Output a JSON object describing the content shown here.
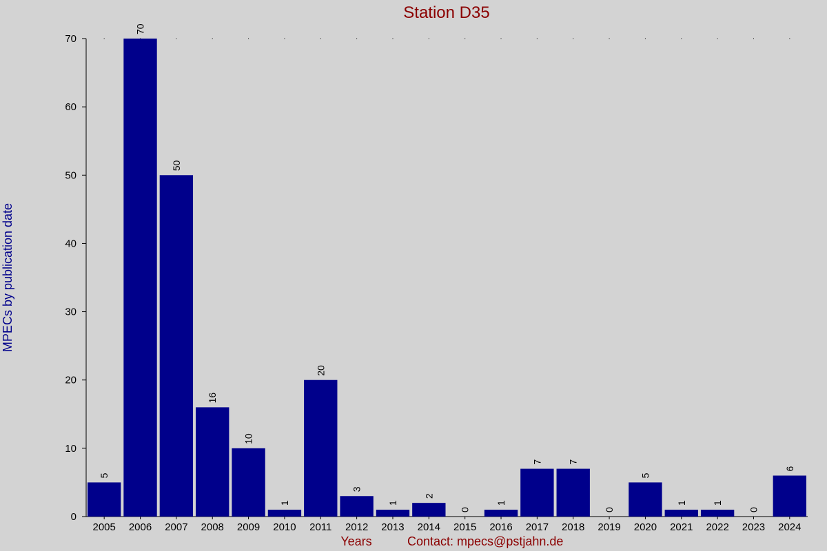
{
  "chart_data": {
    "type": "bar",
    "title": "Station D35",
    "xlabel": "Years",
    "ylabel": "MPECs by publication date",
    "footer": "Contact: mpecs@pstjahn.de",
    "categories": [
      "2005",
      "2006",
      "2007",
      "2008",
      "2009",
      "2010",
      "2011",
      "2012",
      "2013",
      "2014",
      "2015",
      "2016",
      "2017",
      "2018",
      "2019",
      "2020",
      "2021",
      "2022",
      "2023",
      "2024"
    ],
    "values": [
      5,
      70,
      50,
      16,
      10,
      1,
      20,
      3,
      1,
      2,
      0,
      1,
      7,
      7,
      0,
      5,
      1,
      1,
      0,
      6
    ],
    "ylim": [
      0,
      70
    ],
    "yticks": [
      0,
      10,
      20,
      30,
      40,
      50,
      60,
      70
    ],
    "grid": false,
    "colors": {
      "bar": "#00008b",
      "title": "#8b0000",
      "ylabel": "#00008b",
      "xlabel": "#8b0000",
      "background": "#d3d3d3"
    }
  }
}
